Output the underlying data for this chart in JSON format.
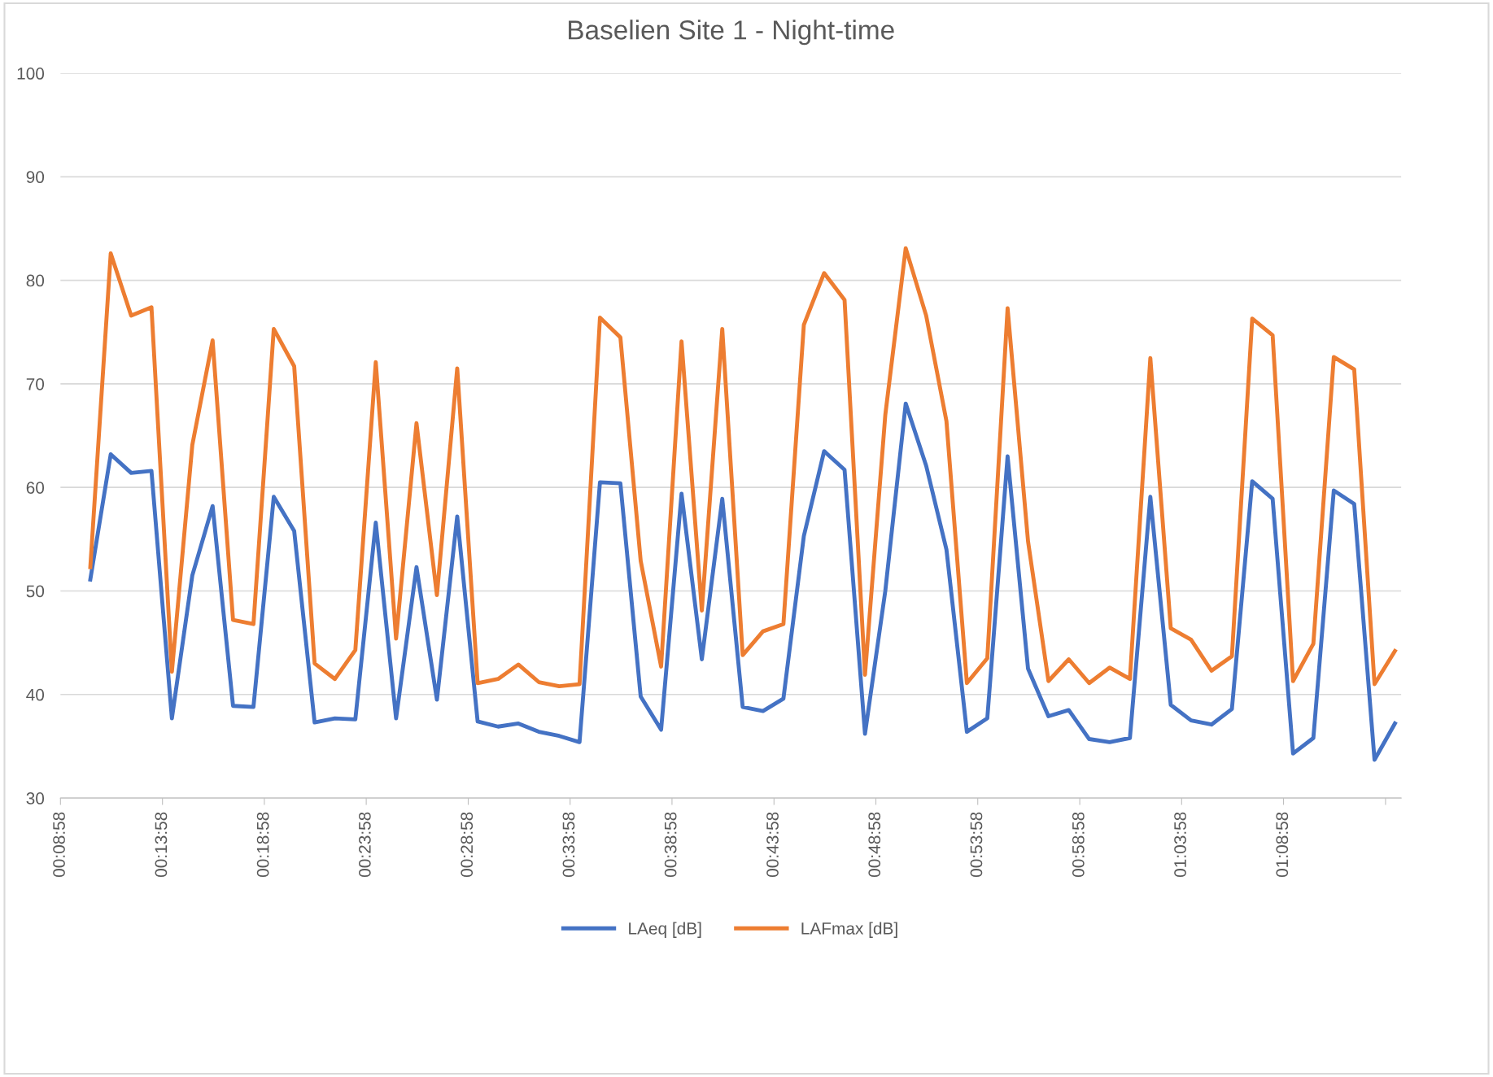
{
  "chart_data": {
    "type": "line",
    "title": "Baselien Site 1 - Night-time",
    "x": [
      0.1738,
      0.1905,
      0.2072,
      0.2238,
      0.2405,
      0.2572,
      0.2738,
      0.2905,
      0.3072,
      0.3238,
      0.3405,
      0.3572,
      0.3738,
      0.3905,
      0.4072,
      0.4238,
      0.4405,
      0.4572,
      0.4738,
      0.4905,
      0.5072,
      0.5238,
      0.5405,
      0.5572,
      0.5738,
      0.5905,
      0.6072,
      0.6238,
      0.6405,
      0.6572,
      0.6738,
      0.6905,
      0.7072,
      0.7238,
      0.7405,
      0.7572,
      0.7738,
      0.7905,
      0.8072,
      0.8238,
      0.8405,
      0.8572,
      0.8738,
      0.8905,
      0.9072,
      0.9238,
      0.9405,
      0.9572,
      0.9738,
      0.9905,
      1.0072,
      1.0238,
      1.0405,
      1.0572,
      1.0738,
      1.0905,
      1.1072,
      1.1238,
      1.1405,
      1.1572,
      1.1738,
      1.1905,
      1.2072,
      1.2238,
      1.2405
    ],
    "series": [
      {
        "name": "LAeq [dB]",
        "color": "#4472c4",
        "values": [
          51.1,
          63.2,
          61.4,
          61.6,
          37.7,
          51.5,
          58.2,
          38.9,
          38.8,
          59.1,
          55.8,
          37.3,
          37.7,
          37.6,
          56.6,
          37.7,
          52.3,
          39.5,
          57.2,
          37.4,
          36.9,
          37.2,
          36.4,
          36.0,
          35.4,
          60.5,
          60.4,
          39.8,
          36.6,
          59.4,
          43.4,
          58.9,
          38.8,
          38.4,
          39.6,
          55.3,
          63.5,
          61.7,
          36.2,
          50.0,
          68.1,
          62.1,
          54.0,
          36.4,
          37.7,
          63.0,
          42.5,
          37.9,
          38.5,
          35.7,
          35.4,
          35.8,
          59.1,
          39.0,
          37.5,
          37.1,
          38.6,
          60.6,
          58.9,
          34.3,
          35.8,
          59.7,
          58.4,
          33.7,
          37.2
        ]
      },
      {
        "name": "LAFmax [dB]",
        "color": "#ed7d31",
        "values": [
          52.3,
          82.6,
          76.6,
          77.4,
          42.2,
          64.1,
          74.2,
          47.2,
          46.8,
          75.3,
          71.7,
          43.0,
          41.5,
          44.3,
          72.1,
          45.4,
          66.2,
          49.6,
          71.5,
          41.1,
          41.5,
          42.9,
          41.2,
          40.8,
          41.0,
          76.4,
          74.5,
          52.9,
          42.7,
          74.1,
          48.1,
          75.3,
          43.8,
          46.1,
          46.8,
          75.7,
          80.7,
          78.1,
          41.9,
          67.0,
          83.1,
          76.6,
          66.4,
          41.1,
          43.5,
          77.3,
          54.8,
          41.3,
          43.4,
          41.1,
          42.6,
          41.5,
          72.5,
          46.4,
          45.3,
          42.3,
          43.7,
          76.3,
          74.7,
          41.3,
          44.9,
          72.6,
          71.4,
          41.0,
          44.2
        ]
      }
    ],
    "xlim": [
      0.1494,
      1.2456
    ],
    "xticks": [
      {
        "value": 0.1494,
        "label": "00:08:58"
      },
      {
        "value": 0.2328,
        "label": "00:13:58"
      },
      {
        "value": 0.3161,
        "label": "00:18:58"
      },
      {
        "value": 0.3994,
        "label": "00:23:58"
      },
      {
        "value": 0.4828,
        "label": "00:28:58"
      },
      {
        "value": 0.5661,
        "label": "00:33:58"
      },
      {
        "value": 0.6494,
        "label": "00:38:58"
      },
      {
        "value": 0.7328,
        "label": "00:43:58"
      },
      {
        "value": 0.8161,
        "label": "00:48:58"
      },
      {
        "value": 0.8994,
        "label": "00:53:58"
      },
      {
        "value": 0.9828,
        "label": "00:58:58"
      },
      {
        "value": 1.0661,
        "label": "01:03:58"
      },
      {
        "value": 1.1494,
        "label": "01:08:58"
      },
      {
        "value": 1.2328,
        "label": null
      }
    ],
    "ylim": [
      30,
      100
    ],
    "yticks": [
      30,
      40,
      50,
      60,
      70,
      80,
      90,
      100
    ],
    "grid": "y",
    "legend": "bottom",
    "marker": "none",
    "line_style": "solid"
  }
}
